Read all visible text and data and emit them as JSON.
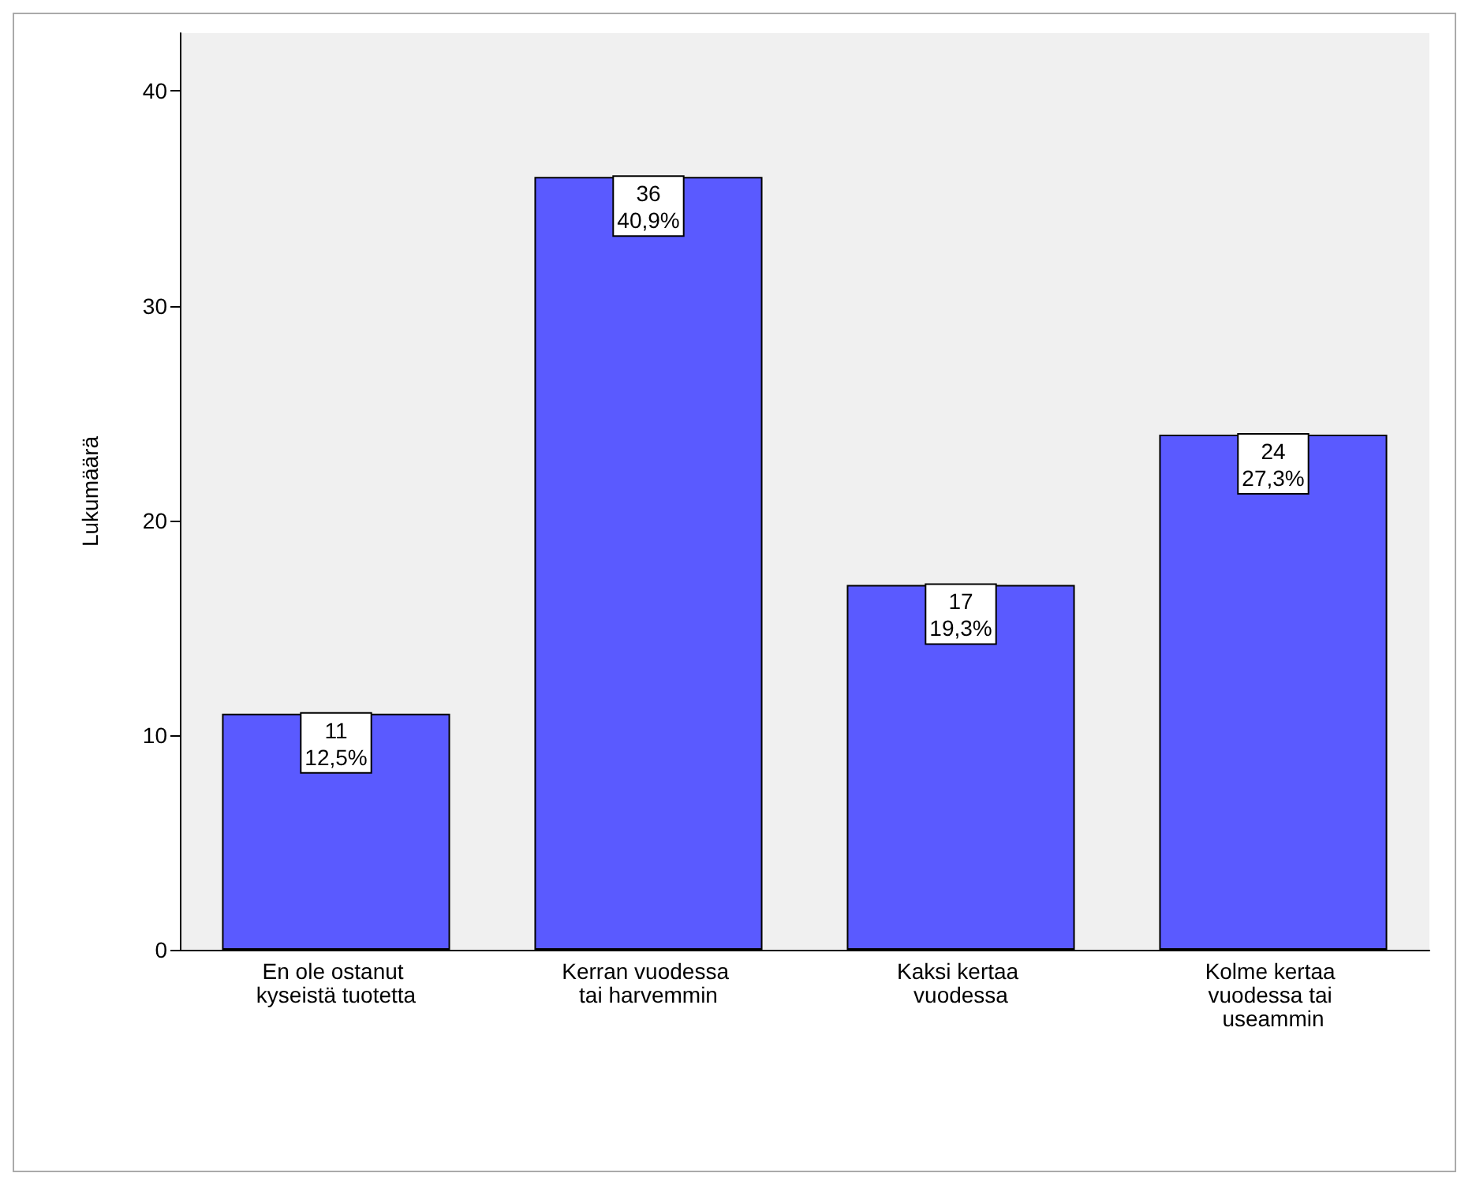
{
  "chart_data": {
    "type": "bar",
    "ylabel": "Lukumäärä",
    "categories": [
      "En ole ostanut kyseistä tuotetta",
      "Kerran vuodessa tai harvemmin",
      "Kaksi kertaa vuodessa",
      "Kolme kertaa vuodessa tai useammin"
    ],
    "values": [
      11,
      36,
      17,
      24
    ],
    "value_labels": [
      "11\n12,5%",
      "36\n40,9%",
      "17\n19,3%",
      "24\n27,3%"
    ],
    "color": "#5a5aff",
    "ylim": [
      0,
      42.7
    ],
    "yticks": [
      0,
      10,
      20,
      30,
      40
    ],
    "grid": false
  }
}
